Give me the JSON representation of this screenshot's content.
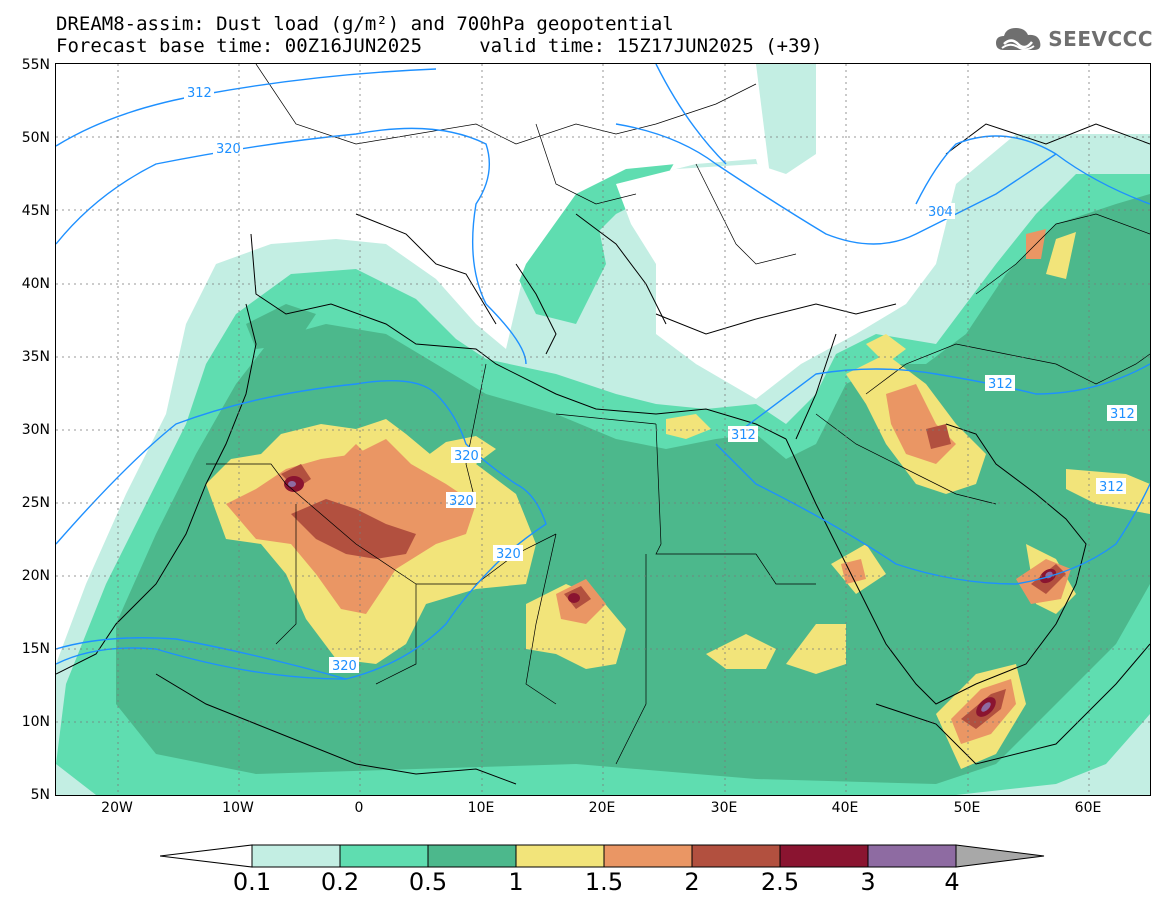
{
  "title_line1": "DREAM8-assim: Dust load (g/m²) and 700hPa geopotential",
  "title_line2": "Forecast base time: 00Z16JUN2025     valid time: 15Z17JUN2025 (+39)",
  "logo_text": "SEEVCCC",
  "lat_labels": [
    "55N",
    "50N",
    "45N",
    "40N",
    "35N",
    "30N",
    "25N",
    "20N",
    "15N",
    "10N",
    "5N"
  ],
  "lon_labels": [
    "20W",
    "10W",
    "0",
    "10E",
    "20E",
    "30E",
    "40E",
    "50E",
    "60E"
  ],
  "colorbar": {
    "labels": [
      "0.1",
      "0.2",
      "0.5",
      "1",
      "1.5",
      "2",
      "2.5",
      "3",
      "4"
    ],
    "colors": [
      "#c3eee3",
      "#5fddb0",
      "#4cb88c",
      "#f2e47a",
      "#ea9664",
      "#b2503f",
      "#8a1430",
      "#8e6ba2"
    ],
    "under_color": "#ffffff",
    "over_color": "#a8a8a8"
  },
  "contour_labels": [
    {
      "text": "312"
    },
    {
      "text": "320"
    },
    {
      "text": "304"
    },
    {
      "text": "312"
    },
    {
      "text": "312"
    },
    {
      "text": "312"
    },
    {
      "text": "312"
    },
    {
      "text": "320"
    },
    {
      "text": "320"
    },
    {
      "text": "320"
    },
    {
      "text": "320"
    }
  ]
}
